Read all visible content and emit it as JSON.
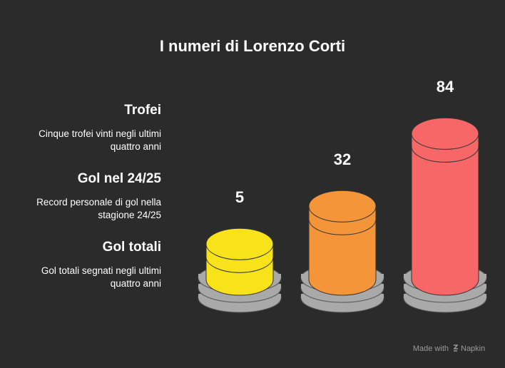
{
  "chart_data": {
    "type": "bar",
    "title": "I numeri di Lorenzo Corti",
    "categories": [
      "Trofei",
      "Gol nel 24/25",
      "Gol totali"
    ],
    "descriptions": [
      "Cinque trofei vinti negli ultimi quattro anni",
      "Record personale di gol nella stagione 24/25",
      "Gol totali segnati negli ultimi quattro anni"
    ],
    "values": [
      5,
      32,
      84
    ],
    "colors": [
      "#f8e21a",
      "#f5953a",
      "#f76767"
    ]
  },
  "watermark": {
    "text": "Made with",
    "brand": "Napkin"
  }
}
